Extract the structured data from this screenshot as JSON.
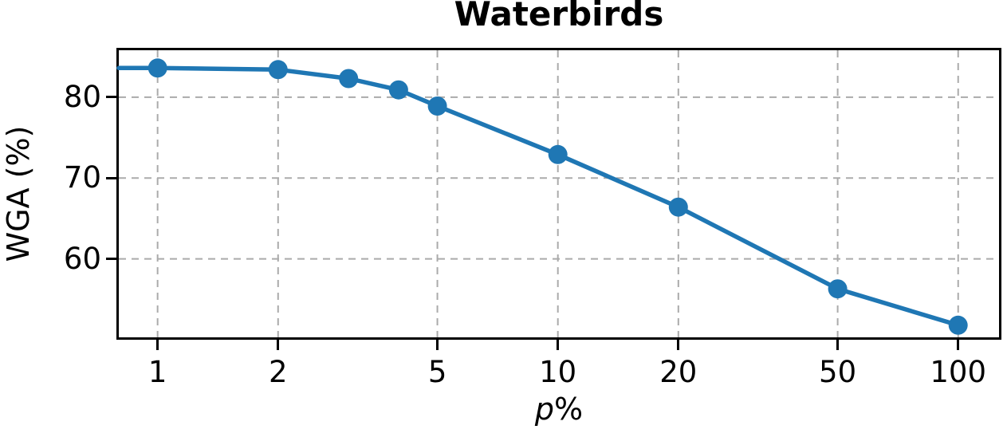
{
  "figure": {
    "xlabel_var": "p",
    "xlabel_suffix": "%"
  },
  "colors": {
    "line": "#1f77b4",
    "marker": "#1f77b4",
    "grid": "#ababab",
    "axis": "#000000",
    "text": "#000000",
    "background": "#ffffff"
  },
  "chart_data": {
    "type": "line",
    "title": "Waterbirds",
    "xlabel": "p%",
    "ylabel": "WGA (%)",
    "x_scale": "log",
    "x": [
      1,
      2,
      3,
      4,
      5,
      10,
      20,
      50,
      100
    ],
    "series": [
      {
        "name": "WGA",
        "values": [
          83.6,
          83.4,
          82.3,
          80.9,
          78.9,
          72.9,
          66.4,
          56.3,
          51.8
        ]
      }
    ],
    "xticks": [
      "1",
      "2",
      "5",
      "10",
      "20",
      "50",
      "100"
    ],
    "xtick_values": [
      1,
      2,
      5,
      10,
      20,
      50,
      100
    ],
    "yticks": [
      "60",
      "70",
      "80"
    ],
    "ytick_values": [
      60,
      70,
      80
    ],
    "xlim": [
      0.8,
      126.5
    ],
    "ylim": [
      50.3,
      85.8
    ],
    "grid": true,
    "grid_style": "dashed",
    "legend": false,
    "marker": "circle",
    "marker_radius": 12,
    "line_width": 5.5,
    "line_extends_to_left_edge": true
  }
}
